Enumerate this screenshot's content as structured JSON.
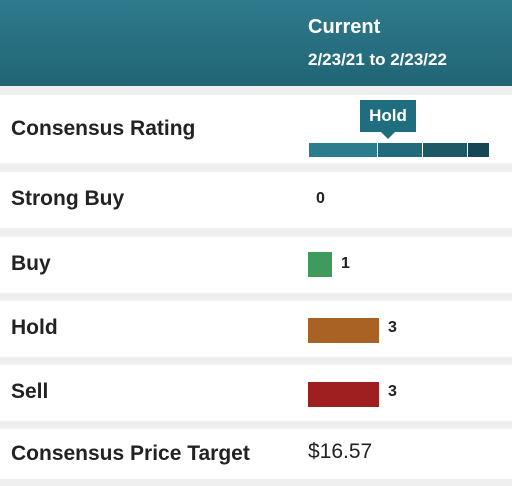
{
  "header": {
    "column_title": "Current",
    "date_range": "2/23/21 to 2/23/22"
  },
  "consensus": {
    "label": "Consensus Rating",
    "rating": "Hold"
  },
  "ratings": [
    {
      "label": "Strong Buy",
      "count": "0",
      "color": "#3e9a5d"
    },
    {
      "label": "Buy",
      "count": "1",
      "color": "#3e9a5d"
    },
    {
      "label": "Hold",
      "count": "3",
      "color": "#a86324"
    },
    {
      "label": "Sell",
      "count": "3",
      "color": "#9f1f21"
    }
  ],
  "price_target": {
    "label": "Consensus Price Target",
    "value": "$16.57"
  },
  "scale_colors": [
    "#2a7d8d",
    "#226b7c",
    "#1d5866",
    "#144654"
  ]
}
